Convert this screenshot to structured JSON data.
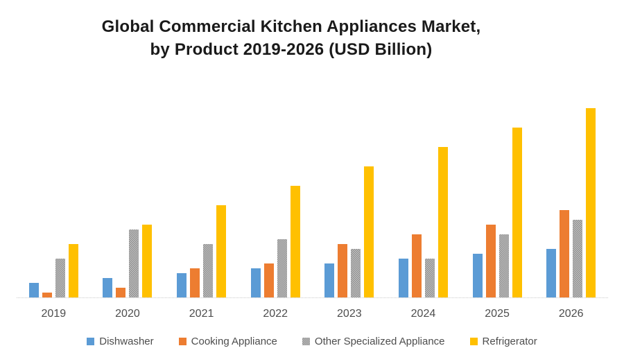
{
  "chart_data": {
    "type": "bar",
    "title": "Global Commercial Kitchen Appliances Market, by Product 2019-2026 (USD Billion)",
    "title_line1": "Global Commercial Kitchen Appliances Market,",
    "title_line2": "by Product 2019-2026 (USD Billion)",
    "unit": "USD Billion",
    "categories": [
      "2019",
      "2020",
      "2021",
      "2022",
      "2023",
      "2024",
      "2025",
      "2026"
    ],
    "series": [
      {
        "name": "Dishwasher",
        "key": "dishwasher",
        "color": "#5B9BD5",
        "pattern": false,
        "values": [
          3,
          4,
          5,
          6,
          7,
          8,
          9,
          10
        ]
      },
      {
        "name": "Cooking Appliance",
        "key": "cooking-appliance",
        "color": "#ED7D31",
        "pattern": false,
        "values": [
          1,
          2,
          6,
          7,
          11,
          13,
          15,
          18
        ]
      },
      {
        "name": "Other Specialized Appliance",
        "key": "other-specialized-appliance",
        "color": "#C6C6C6",
        "pattern": true,
        "values": [
          8,
          14,
          11,
          12,
          10,
          8,
          13,
          16
        ]
      },
      {
        "name": "Refrigerator",
        "key": "refrigerator",
        "color": "#FFC000",
        "pattern": false,
        "values": [
          11,
          15,
          19,
          23,
          27,
          31,
          35,
          39
        ]
      }
    ],
    "xlabel": "",
    "ylabel": "",
    "ylim": [
      0,
      44
    ],
    "y_axis_visible": false,
    "gridlines": false,
    "legend_position": "bottom",
    "baseline_style": "dotted"
  },
  "colors": {
    "title_text": "#1a1a1a",
    "axis_text": "#4d4d4d",
    "baseline": "#c9c9c9"
  }
}
